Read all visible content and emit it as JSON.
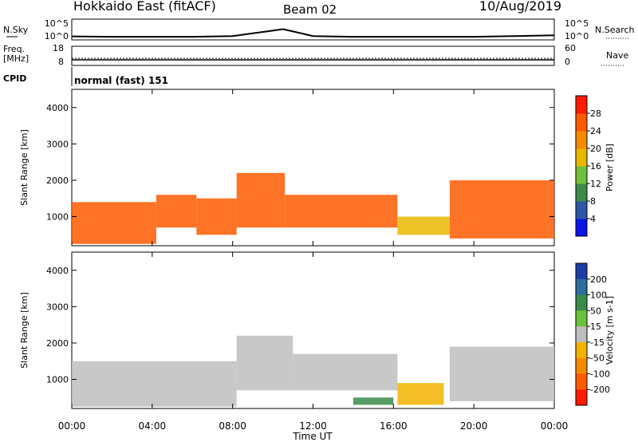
{
  "header": {
    "station": "Hokkaido East (fitACF)",
    "beam": "Beam 02",
    "date": "10/Aug/2019"
  },
  "labels": {
    "nsky": "N.Sky",
    "freq_line1": "Freq.",
    "freq_line2": "[MHz]",
    "cpid": "CPID",
    "nsearch": "N.Search",
    "nave": "Nave"
  },
  "cpid_text": "normal (fast) 151",
  "chart_data": [
    {
      "type": "line",
      "panel": "noise",
      "left_ticks": [
        "10^5",
        "10^0"
      ],
      "right_ticks": [
        "10^5",
        "10^0"
      ],
      "x": [
        "00:00",
        "02:00",
        "04:00",
        "06:00",
        "08:00",
        "09:00",
        "10:00",
        "10:30",
        "11:00",
        "12:00",
        "14:00",
        "16:00",
        "18:00",
        "20:00",
        "22:00",
        "24:00"
      ],
      "series": [
        {
          "values": [
            0.7,
            0.6,
            0.6,
            0.6,
            0.8,
            1.5,
            2.2,
            2.6,
            2.0,
            0.8,
            0.6,
            0.6,
            0.6,
            0.6,
            0.8,
            1.0
          ]
        }
      ]
    },
    {
      "type": "line",
      "panel": "frequency",
      "left_ticks": [
        "18",
        "8"
      ],
      "right_ticks": [
        "60",
        "0"
      ],
      "x": [
        "00:00",
        "24:00"
      ],
      "series": [
        {
          "values": [
            10.9,
            10.9
          ]
        },
        {
          "values": [
            11.7,
            11.7
          ]
        }
      ]
    },
    {
      "type": "heatmap",
      "panel": "power",
      "ylabel": "Slant Range [km]",
      "yticks": [
        "1000",
        "2000",
        "3000",
        "4000"
      ],
      "ylim": [
        200,
        4500
      ],
      "xlim": [
        0,
        24
      ],
      "colorbar_label": "Power [dB]",
      "colorbar_ticks": [
        "4",
        "8",
        "12",
        "16",
        "20",
        "24",
        "28"
      ],
      "colors": [
        "#0a14e6",
        "#2f55a8",
        "#3c8a4c",
        "#6fc13d",
        "#e8b800",
        "#f58a00",
        "#ff5a00",
        "#ff1a00"
      ],
      "regions": [
        {
          "t0": 0.0,
          "t1": 4.2,
          "r0": 250,
          "r1": 1400,
          "level": 26
        },
        {
          "t0": 4.2,
          "t1": 6.2,
          "r0": 700,
          "r1": 1600,
          "level": 24
        },
        {
          "t0": 6.2,
          "t1": 8.2,
          "r0": 500,
          "r1": 1500,
          "level": 26
        },
        {
          "t0": 8.2,
          "t1": 10.6,
          "r0": 700,
          "r1": 2200,
          "level": 24
        },
        {
          "t0": 10.6,
          "t1": 16.2,
          "r0": 700,
          "r1": 1600,
          "level": 26
        },
        {
          "t0": 16.2,
          "t1": 18.8,
          "r0": 500,
          "r1": 1000,
          "level": 18
        },
        {
          "t0": 18.8,
          "t1": 24.0,
          "r0": 400,
          "r1": 2000,
          "level": 26
        }
      ]
    },
    {
      "type": "heatmap",
      "panel": "velocity",
      "ylabel": "Slant Range [km]",
      "yticks": [
        "1000",
        "2000",
        "3000",
        "4000"
      ],
      "ylim": [
        200,
        4500
      ],
      "xlim": [
        0,
        24
      ],
      "xlabel": "Time UT",
      "xticks": [
        "00:00",
        "04:00",
        "08:00",
        "12:00",
        "16:00",
        "20:00",
        "00:00"
      ],
      "colorbar_label": "Velocity [m s-1]",
      "colorbar_ticks": [
        "200",
        "100",
        "50",
        "15",
        "-15",
        "-50",
        "-100",
        "-200"
      ],
      "colors": [
        "#1e3ca8",
        "#2e6e9e",
        "#3a8a4a",
        "#6cc23c",
        "#bebebe",
        "#f2b400",
        "#f58a00",
        "#ff5a00",
        "#ff1a00"
      ],
      "regions": [
        {
          "t0": 0.0,
          "t1": 8.2,
          "r0": 250,
          "r1": 1500,
          "value": 0
        },
        {
          "t0": 8.2,
          "t1": 11.0,
          "r0": 700,
          "r1": 2200,
          "value": 0
        },
        {
          "t0": 11.0,
          "t1": 16.2,
          "r0": 700,
          "r1": 1700,
          "value": 0
        },
        {
          "t0": 16.2,
          "t1": 18.5,
          "r0": 300,
          "r1": 900,
          "value": -30
        },
        {
          "t0": 14.0,
          "t1": 16.0,
          "r0": 300,
          "r1": 500,
          "value": 40
        },
        {
          "t0": 18.8,
          "t1": 24.0,
          "r0": 400,
          "r1": 1900,
          "value": 0
        }
      ]
    }
  ]
}
